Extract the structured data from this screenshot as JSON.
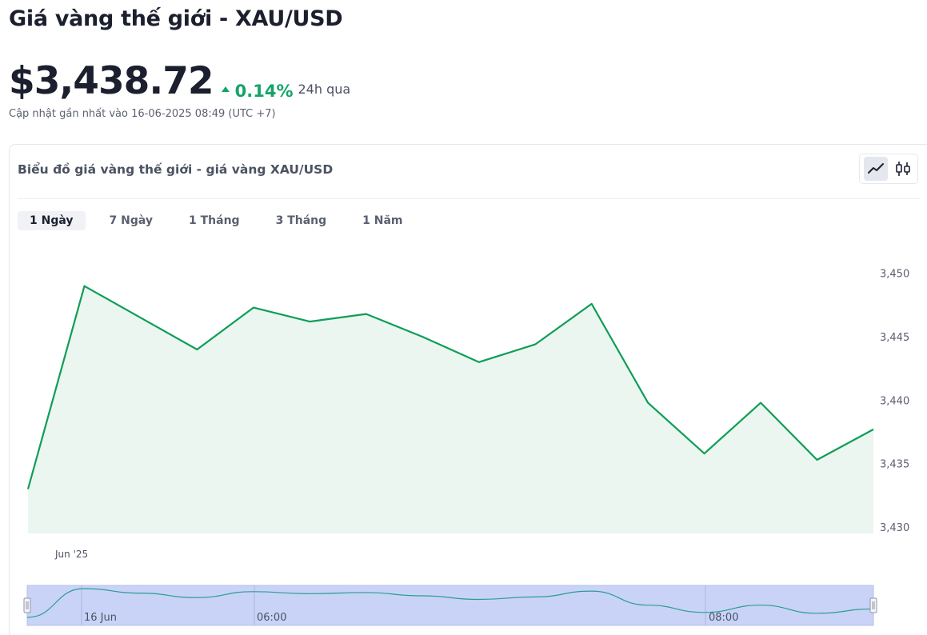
{
  "header": {
    "title": "Giá vàng thế giới - XAU/USD",
    "price": "$3,438.72",
    "change": "0.14%",
    "change_period": "24h qua",
    "updated": "Cập nhật gần nhất vào 16-06-2025 08:49 (UTC +7)"
  },
  "card": {
    "title": "Biểu đồ giá vàng thế giới - giá vàng XAU/USD",
    "tabs": [
      {
        "label": "1 Ngày",
        "active": true
      },
      {
        "label": "7 Ngày",
        "active": false
      },
      {
        "label": "1 Tháng",
        "active": false
      },
      {
        "label": "3 Tháng",
        "active": false
      },
      {
        "label": "1 Năm",
        "active": false
      }
    ],
    "view_toggle": [
      "line-chart-icon",
      "candlestick-icon"
    ]
  },
  "colors": {
    "line": "#0f9d58",
    "area": "#eaf6ef",
    "up": "#16a36a",
    "navigator_fill": "#c9d3f7",
    "navigator_line": "#2a9d8f"
  },
  "chart_data": {
    "type": "line",
    "y": [
      3433.5,
      3449.5,
      3447.0,
      3444.5,
      3447.8,
      3446.7,
      3447.3,
      3445.5,
      3443.5,
      3444.9,
      3448.1,
      3440.3,
      3436.3,
      3440.3,
      3435.8,
      3438.2
    ],
    "ylim": [
      3430,
      3452
    ],
    "yticks": [
      3430,
      3435,
      3440,
      3445,
      3450
    ],
    "ytick_labels": [
      "3,430",
      "3,435",
      "3,440",
      "3,445",
      "3,450"
    ],
    "xlabel": "Jun '25",
    "navigator_labels": [
      "16 Jun",
      "06:00",
      "08:00"
    ],
    "grid": false
  }
}
